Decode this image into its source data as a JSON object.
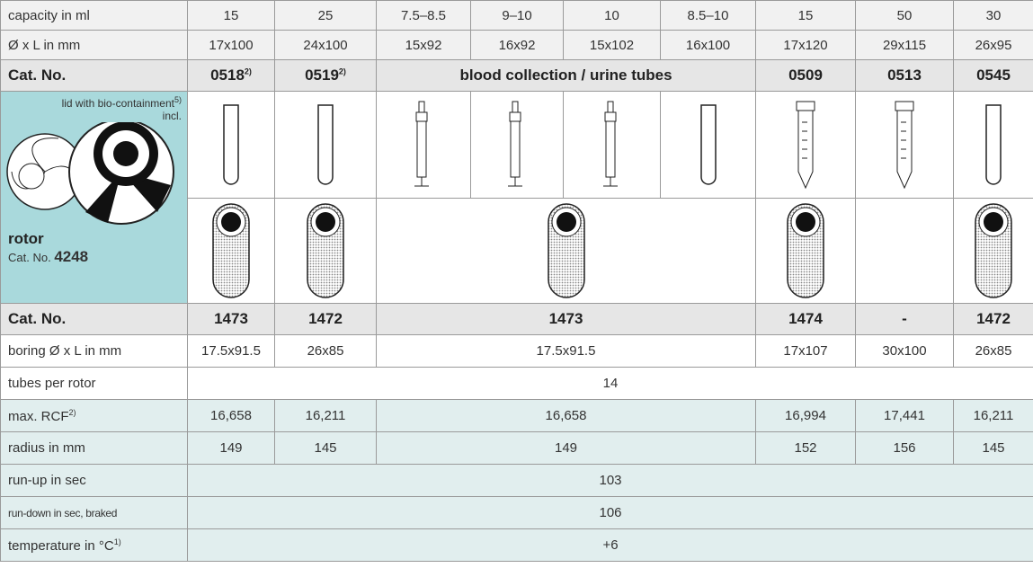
{
  "table": {
    "rows": [
      {
        "label": "capacity in ml",
        "cells": [
          "15",
          "25",
          "7.5–8.5",
          "9–10",
          "10",
          "8.5–10",
          "15",
          "50",
          "30"
        ]
      },
      {
        "label": "Ø x L in mm",
        "cells": [
          "17x100",
          "24x100",
          "15x92",
          "16x92",
          "15x102",
          "16x100",
          "17x120",
          "29x115",
          "26x95"
        ]
      },
      {
        "label": "Cat. No.",
        "cells": [
          {
            "text": "0518",
            "note": "2)"
          },
          {
            "text": "0519",
            "note": "2)"
          },
          {
            "text": "blood collection / urine tubes"
          },
          {
            "text": "0509"
          },
          {
            "text": "0513"
          },
          {
            "text": "0545"
          }
        ]
      },
      {
        "label": "Cat. No.",
        "cells": [
          "1473",
          "1472",
          "1473",
          "1474",
          "-",
          "1472"
        ]
      },
      {
        "label": "boring Ø x L in mm",
        "cells": [
          "17.5x91.5",
          "26x85",
          "17.5x91.5",
          "17x107",
          "30x100",
          "26x85"
        ]
      },
      {
        "label": "tubes per rotor",
        "cells": [
          "14"
        ]
      },
      {
        "label": "max. RCF",
        "label_note": "2)",
        "cells": [
          "16,658",
          "16,211",
          "16,658",
          "16,994",
          "17,441",
          "16,211"
        ]
      },
      {
        "label": "radius in mm",
        "cells": [
          "149",
          "145",
          "149",
          "152",
          "156",
          "145"
        ]
      },
      {
        "label": "run-up in sec",
        "cells": [
          "103"
        ]
      },
      {
        "label": "run-down in sec, braked",
        "cells": [
          "106"
        ]
      },
      {
        "label": "temperature in °C",
        "label_note": "1)",
        "cells": [
          "+6"
        ]
      }
    ]
  },
  "rotor": {
    "lid_text": "lid with bio-containment",
    "lid_note": "5)",
    "lid_suffix": "incl.",
    "name": "rotor",
    "cat_label": "Cat. No.",
    "cat_number": "4248"
  }
}
